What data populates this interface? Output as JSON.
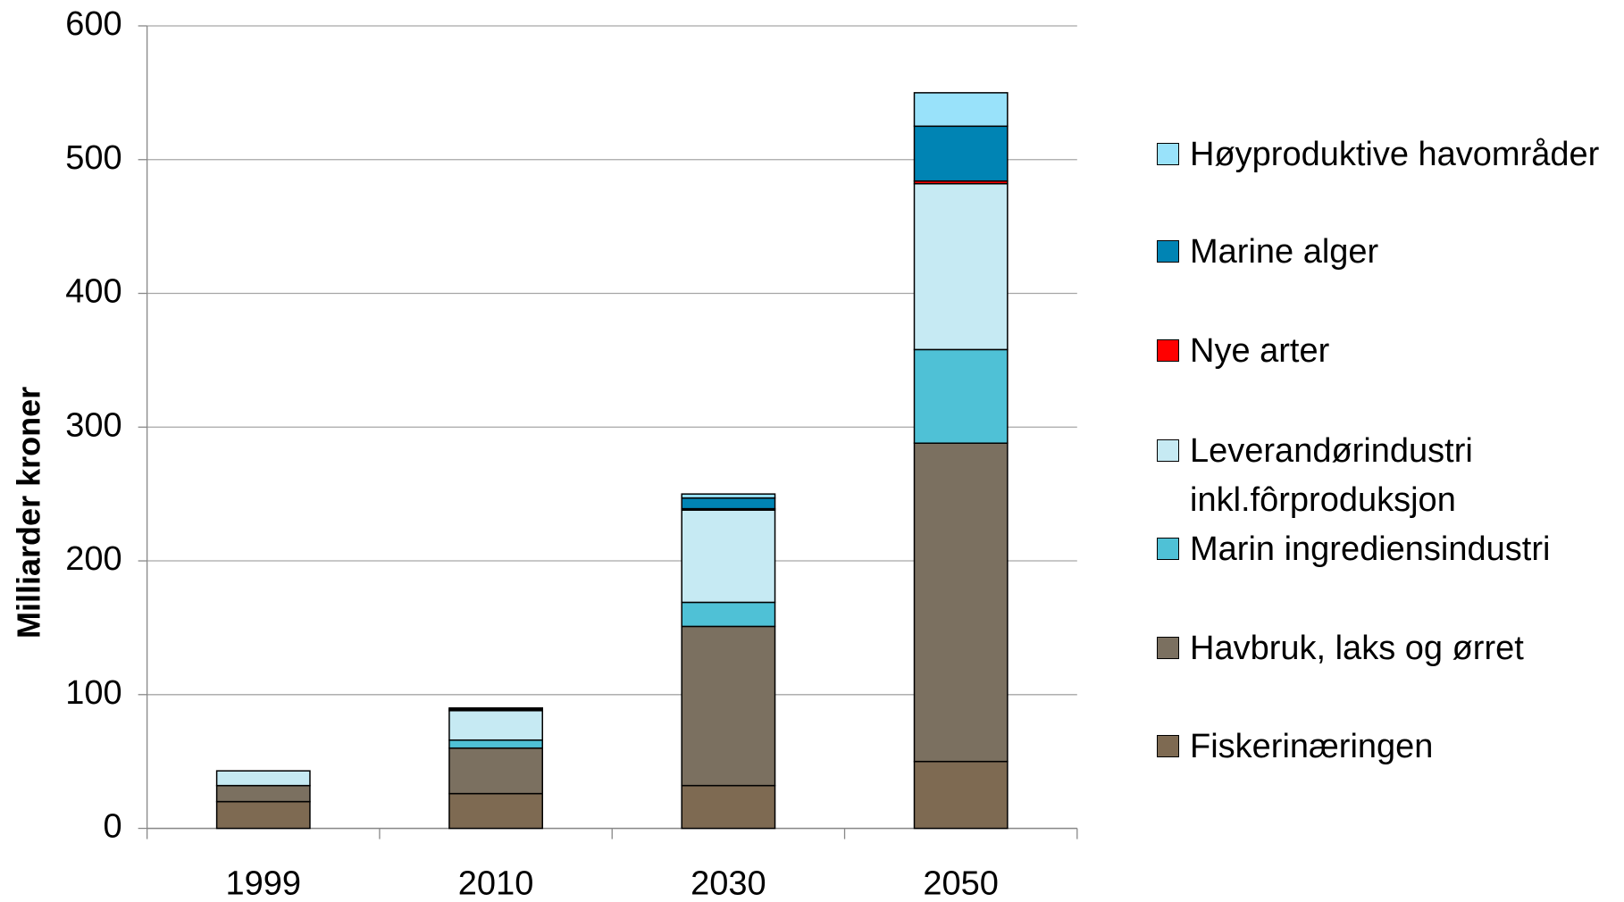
{
  "chart_data": {
    "type": "stacked_bar",
    "y_label": "Milliarder kroner",
    "categories": [
      "1999",
      "2010",
      "2030",
      "2050"
    ],
    "series": [
      {
        "name": "Fiskerinæringen",
        "color": "#7e6a52",
        "values": [
          20,
          26,
          32,
          50
        ]
      },
      {
        "name": "Havbruk, laks og ørret",
        "color": "#7b7060",
        "values": [
          12,
          34,
          119,
          238
        ]
      },
      {
        "name": "Marin ingrediensindustri",
        "color": "#4fc1d6",
        "values": [
          0,
          6,
          18,
          70
        ]
      },
      {
        "name": "Leverandørindustri inkl.fôrproduksjon",
        "color": "#c6eaf3",
        "values": [
          11,
          22,
          69,
          124
        ]
      },
      {
        "name": "Nye arter",
        "color": "#ff0000",
        "values": [
          0,
          1,
          1,
          2
        ]
      },
      {
        "name": "Marine alger",
        "color": "#0084b4",
        "values": [
          0,
          1,
          8,
          41
        ]
      },
      {
        "name": "Høyproduktive havområder",
        "color": "#99e2fa",
        "values": [
          0,
          0,
          3,
          25
        ]
      }
    ],
    "ylim": [
      0,
      600
    ],
    "yticks": [
      0,
      100,
      200,
      300,
      400,
      500,
      600
    ],
    "grid": true,
    "legend": "right"
  }
}
